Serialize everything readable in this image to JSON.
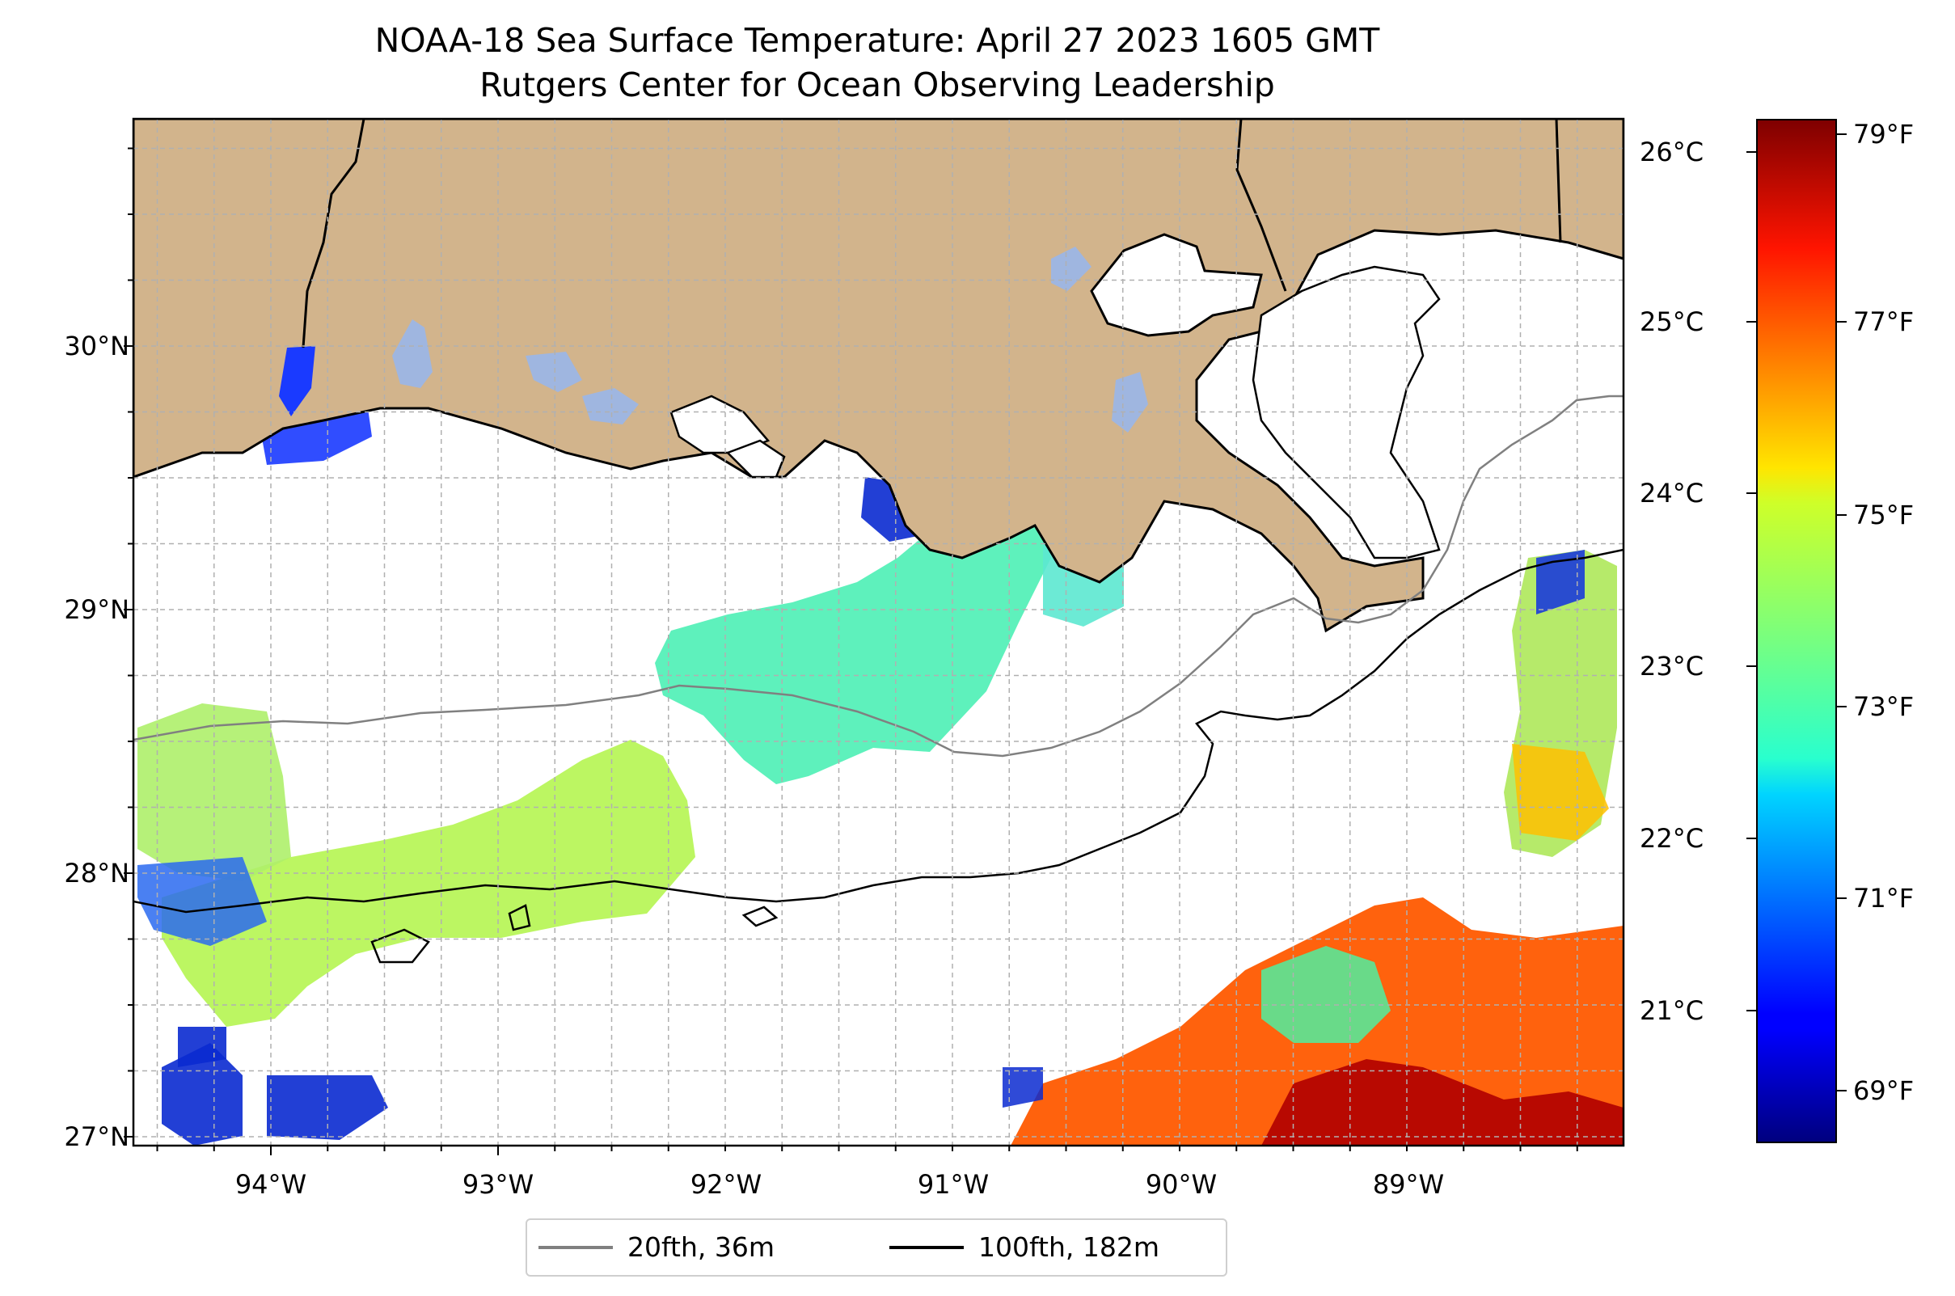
{
  "title": {
    "line1": "NOAA-18 Sea Surface Temperature: April 27 2023 1605 GMT",
    "line2": "Rutgers Center for Ocean Observing Leadership"
  },
  "colors": {
    "land": "#d2b48c",
    "lakes": "#9fb6e0",
    "ocean_nodata": "#ffffff",
    "isobath_20fth": "#808080",
    "isobath_100fth": "#000000",
    "grid": "#b0b0b0"
  },
  "map": {
    "lat_labels": [
      "30°N",
      "29°N",
      "28°N",
      "27°N"
    ],
    "lon_labels": [
      "94°W",
      "93°W",
      "92°W",
      "91°W",
      "90°W",
      "89°W"
    ]
  },
  "colorbar": {
    "celsius_labels": [
      "26°C",
      "25°C",
      "24°C",
      "23°C",
      "22°C",
      "21°C"
    ],
    "fahrenheit_labels": [
      "79°F",
      "77°F",
      "75°F",
      "73°F",
      "71°F",
      "69°F"
    ],
    "colormap": "jet",
    "range_celsius": [
      20.2,
      26.2
    ],
    "range_fahrenheit": [
      68.4,
      79.2
    ]
  },
  "legend": {
    "items": [
      {
        "label": "20fth, 36m",
        "color": "#808080"
      },
      {
        "label": "100fth, 182m",
        "color": "#000000"
      }
    ]
  }
}
